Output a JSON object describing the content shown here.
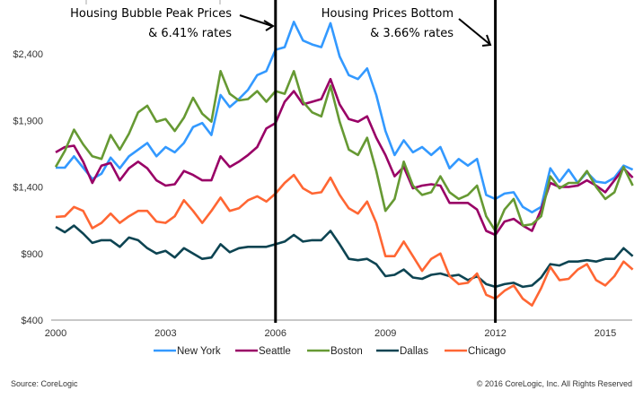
{
  "chart_data": {
    "type": "line",
    "title": "",
    "xlabel": "",
    "ylabel": "",
    "xlim": [
      2000,
      2015.8
    ],
    "ylim": [
      400,
      2800
    ],
    "x_ticks": [
      "2000",
      "2003",
      "2006",
      "2009",
      "2012",
      "2015"
    ],
    "y_ticks": [
      "$400",
      "$900",
      "$1,400",
      "$1,900",
      "$2,400"
    ],
    "y_tick_values": [
      400,
      900,
      1400,
      1900,
      2400
    ],
    "grid": false,
    "legend_position": "bottom",
    "x": [
      2000,
      2000.25,
      2000.5,
      2000.75,
      2001,
      2001.25,
      2001.5,
      2001.75,
      2002,
      2002.25,
      2002.5,
      2002.75,
      2003,
      2003.25,
      2003.5,
      2003.75,
      2004,
      2004.25,
      2004.5,
      2004.75,
      2005,
      2005.25,
      2005.5,
      2005.75,
      2006,
      2006.25,
      2006.5,
      2006.75,
      2007,
      2007.25,
      2007.5,
      2007.75,
      2008,
      2008.25,
      2008.5,
      2008.75,
      2009,
      2009.25,
      2009.5,
      2009.75,
      2010,
      2010.25,
      2010.5,
      2010.75,
      2011,
      2011.25,
      2011.5,
      2011.75,
      2012,
      2012.25,
      2012.5,
      2012.75,
      2013,
      2013.25,
      2013.5,
      2013.75,
      2014,
      2014.25,
      2014.5,
      2014.75,
      2015,
      2015.25,
      2015.5,
      2015.75
    ],
    "series": [
      {
        "name": "New York",
        "color": "#3399ff",
        "values": [
          1545,
          1545,
          1630,
          1545,
          1460,
          1500,
          1620,
          1540,
          1630,
          1680,
          1730,
          1630,
          1700,
          1660,
          1730,
          1850,
          1880,
          1790,
          2090,
          2000,
          2060,
          2130,
          2240,
          2270,
          2430,
          2450,
          2640,
          2500,
          2470,
          2450,
          2630,
          2380,
          2240,
          2210,
          2290,
          2090,
          1820,
          1640,
          1750,
          1660,
          1700,
          1640,
          1700,
          1540,
          1610,
          1560,
          1610,
          1340,
          1310,
          1350,
          1360,
          1250,
          1210,
          1250,
          1540,
          1440,
          1530,
          1430,
          1510,
          1440,
          1430,
          1470,
          1560,
          1530
        ]
      },
      {
        "name": "Seattle",
        "color": "#990066",
        "values": [
          1660,
          1700,
          1710,
          1590,
          1430,
          1560,
          1580,
          1450,
          1540,
          1590,
          1540,
          1450,
          1410,
          1420,
          1520,
          1490,
          1450,
          1450,
          1630,
          1550,
          1590,
          1640,
          1700,
          1840,
          1880,
          2040,
          2120,
          2020,
          2040,
          2060,
          2210,
          2020,
          1910,
          1890,
          1930,
          1770,
          1640,
          1480,
          1550,
          1390,
          1410,
          1420,
          1410,
          1280,
          1280,
          1280,
          1230,
          1070,
          1040,
          1140,
          1160,
          1110,
          1070,
          1230,
          1430,
          1400,
          1400,
          1410,
          1450,
          1410,
          1360,
          1450,
          1540,
          1470
        ]
      },
      {
        "name": "Boston",
        "color": "#669933",
        "values": [
          1550,
          1670,
          1830,
          1720,
          1630,
          1610,
          1790,
          1680,
          1800,
          1960,
          2010,
          1890,
          1910,
          1820,
          1920,
          2070,
          1950,
          1890,
          2270,
          2100,
          2050,
          2060,
          2120,
          2040,
          2120,
          2100,
          2270,
          2040,
          1960,
          1930,
          2160,
          1890,
          1680,
          1640,
          1770,
          1520,
          1220,
          1310,
          1590,
          1410,
          1340,
          1360,
          1480,
          1360,
          1310,
          1340,
          1410,
          1180,
          1070,
          1230,
          1310,
          1110,
          1120,
          1180,
          1480,
          1390,
          1430,
          1430,
          1520,
          1400,
          1310,
          1360,
          1550,
          1410
        ]
      },
      {
        "name": "Dallas",
        "color": "#0d4452",
        "values": [
          1100,
          1060,
          1110,
          1050,
          980,
          1000,
          1000,
          950,
          1020,
          1000,
          940,
          900,
          920,
          870,
          940,
          900,
          860,
          870,
          970,
          910,
          940,
          950,
          950,
          950,
          970,
          990,
          1040,
          990,
          1000,
          1000,
          1070,
          970,
          860,
          850,
          860,
          820,
          730,
          740,
          780,
          720,
          710,
          740,
          750,
          730,
          740,
          700,
          730,
          670,
          650,
          670,
          680,
          650,
          660,
          720,
          820,
          810,
          840,
          840,
          850,
          840,
          860,
          860,
          940,
          880
        ]
      },
      {
        "name": "Chicago",
        "color": "#ff6633",
        "values": [
          1175,
          1180,
          1250,
          1220,
          1090,
          1130,
          1200,
          1130,
          1180,
          1220,
          1220,
          1140,
          1130,
          1180,
          1300,
          1220,
          1130,
          1220,
          1320,
          1220,
          1240,
          1300,
          1330,
          1290,
          1350,
          1430,
          1490,
          1390,
          1350,
          1360,
          1470,
          1340,
          1240,
          1200,
          1290,
          1130,
          880,
          880,
          990,
          880,
          770,
          860,
          900,
          730,
          670,
          680,
          750,
          590,
          560,
          620,
          660,
          560,
          510,
          640,
          800,
          700,
          710,
          780,
          820,
          700,
          660,
          730,
          840,
          780
        ]
      }
    ],
    "markers": [
      {
        "x": 2006,
        "label_line1": "Housing Bubble Peak Prices",
        "label_line2": "& 6.41% rates"
      },
      {
        "x": 2012,
        "label_line1": "Housing Prices Bottom",
        "label_line2": "& 3.66% rates"
      }
    ]
  },
  "footer": {
    "source": "Source: CoreLogic",
    "copyright": "© 2016 CoreLogic, Inc. All Rights Reserved"
  }
}
